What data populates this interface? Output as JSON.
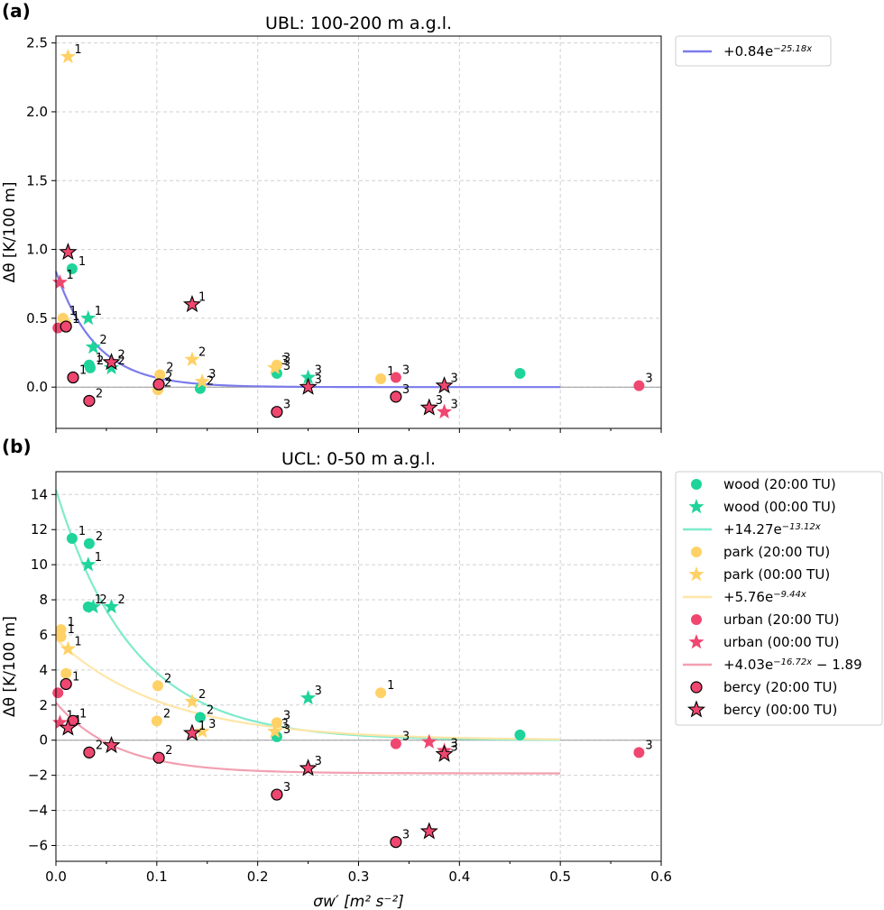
{
  "chart_data": [
    {
      "type": "scatter",
      "panel_label": "(a)",
      "title": "UBL: 100-200 m a.g.l.",
      "xlabel": "",
      "ylabel": "Δθ [K/100 m]",
      "xlim": [
        0,
        0.6
      ],
      "ylim": [
        -0.3,
        2.55
      ],
      "xticks": [],
      "yticks": [
        0.0,
        0.5,
        1.0,
        1.5,
        2.0,
        2.5
      ],
      "ytick_labels": [
        "0.0",
        "0.5",
        "1.0",
        "1.5",
        "2.0",
        "2.5"
      ],
      "grid": true,
      "legend_position": "outside-right",
      "legend": [
        {
          "kind": "line",
          "color": "#7b7bec",
          "label": "+0.84e",
          "exp": "−25.18x"
        }
      ],
      "fits": [
        {
          "a": 0.84,
          "b": 25.18,
          "c": 0,
          "x_range": [
            0,
            0.5
          ],
          "color": "#7b7bec"
        }
      ],
      "series": [
        {
          "name": "wood (20:00 TU)",
          "marker": "circle",
          "color": "#1ed49a",
          "edge": false,
          "points": [
            [
              0.016,
              0.86,
              "1"
            ],
            [
              0.033,
              0.16,
              "1"
            ],
            [
              0.034,
              0.14,
              "2"
            ],
            [
              0.143,
              -0.01,
              "2"
            ],
            [
              0.219,
              0.1,
              "3"
            ],
            [
              0.46,
              0.1,
              ""
            ]
          ]
        },
        {
          "name": "wood (00:00 TU)",
          "marker": "star",
          "color": "#1ed49a",
          "edge": false,
          "points": [
            [
              0.032,
              0.5,
              "1"
            ],
            [
              0.037,
              0.29,
              "2"
            ],
            [
              0.055,
              0.14,
              "2"
            ],
            [
              0.25,
              0.07,
              "3"
            ]
          ]
        },
        {
          "name": "park (20:00 TU)",
          "marker": "circle",
          "color": "#ffd166",
          "edge": false,
          "points": [
            [
              0.007,
              0.5,
              "1"
            ],
            [
              0.01,
              0.46,
              "1"
            ],
            [
              0.101,
              -0.02,
              "2"
            ],
            [
              0.103,
              0.09,
              "2"
            ],
            [
              0.219,
              0.16,
              "3"
            ],
            [
              0.322,
              0.06,
              "1"
            ]
          ]
        },
        {
          "name": "park (00:00 TU)",
          "marker": "star",
          "color": "#ffd166",
          "edge": false,
          "points": [
            [
              0.012,
              2.4,
              "1"
            ],
            [
              0.135,
              0.2,
              "2"
            ],
            [
              0.145,
              0.04,
              "3"
            ],
            [
              0.217,
              0.14,
              "3"
            ]
          ]
        },
        {
          "name": "urban (20:00 TU)",
          "marker": "circle",
          "color": "#ef476f",
          "edge": false,
          "points": [
            [
              0.002,
              0.43,
              ""
            ],
            [
              0.337,
              0.07,
              "3"
            ],
            [
              0.578,
              0.01,
              "3"
            ]
          ]
        },
        {
          "name": "urban (00:00 TU)",
          "marker": "star",
          "color": "#ef476f",
          "edge": false,
          "points": [
            [
              0.004,
              0.76,
              "1"
            ],
            [
              0.385,
              -0.18,
              "3"
            ]
          ]
        },
        {
          "name": "bercy (20:00 TU)",
          "marker": "circle",
          "color": "#ef476f",
          "edge": true,
          "points": [
            [
              0.01,
              0.44,
              "1"
            ],
            [
              0.017,
              0.07,
              "1"
            ],
            [
              0.033,
              -0.1,
              "2"
            ],
            [
              0.102,
              0.02,
              "2"
            ],
            [
              0.219,
              -0.18,
              "3"
            ],
            [
              0.337,
              -0.07,
              "3"
            ]
          ]
        },
        {
          "name": "bercy (00:00 TU)",
          "marker": "star",
          "color": "#ef476f",
          "edge": true,
          "points": [
            [
              0.012,
              0.98,
              ""
            ],
            [
              0.055,
              0.18,
              "2"
            ],
            [
              0.135,
              0.6,
              "1"
            ],
            [
              0.25,
              0.0,
              "3"
            ],
            [
              0.37,
              -0.15,
              "3"
            ],
            [
              0.385,
              0.01,
              "3"
            ]
          ]
        }
      ]
    },
    {
      "type": "scatter",
      "panel_label": "(b)",
      "title": "UCL: 0-50 m a.g.l.",
      "xlabel": "σw′ [m² s⁻²]",
      "ylabel": "Δθ [K/100 m]",
      "xlim": [
        0,
        0.6
      ],
      "ylim": [
        -6.9,
        15.3
      ],
      "xticks": [
        0.0,
        0.1,
        0.2,
        0.3,
        0.4,
        0.5,
        0.6
      ],
      "xtick_labels": [
        "0.0",
        "0.1",
        "0.2",
        "0.3",
        "0.4",
        "0.5",
        "0.6"
      ],
      "yticks": [
        -6,
        -4,
        -2,
        0,
        2,
        4,
        6,
        8,
        10,
        12,
        14
      ],
      "ytick_labels": [
        "−6",
        "−4",
        "−2",
        "0",
        "2",
        "4",
        "6",
        "8",
        "10",
        "12",
        "14"
      ],
      "grid": true,
      "legend_position": "outside-right",
      "legend": [
        {
          "kind": "circle",
          "color": "#1ed49a",
          "edge": false,
          "label": "wood (20:00 TU)"
        },
        {
          "kind": "star",
          "color": "#1ed49a",
          "edge": false,
          "label": "wood (00:00 TU)"
        },
        {
          "kind": "line",
          "color": "#7eebcb",
          "label": "+14.27e",
          "exp": "−13.12x"
        },
        {
          "kind": "circle",
          "color": "#ffd166",
          "edge": false,
          "label": "park (20:00 TU)"
        },
        {
          "kind": "star",
          "color": "#ffd166",
          "edge": false,
          "label": "park (00:00 TU)"
        },
        {
          "kind": "line",
          "color": "#ffe6a8",
          "label": "+5.76e",
          "exp": "−9.44x"
        },
        {
          "kind": "circle",
          "color": "#ef476f",
          "edge": false,
          "label": "urban (20:00 TU)"
        },
        {
          "kind": "star",
          "color": "#ef476f",
          "edge": false,
          "label": "urban (00:00 TU)"
        },
        {
          "kind": "line",
          "color": "#f29fb1",
          "label": "+4.03e",
          "exp": "−16.72x",
          "suffix": " − 1.89"
        },
        {
          "kind": "circle",
          "color": "#ef476f",
          "edge": true,
          "label": "bercy (20:00 TU)"
        },
        {
          "kind": "star",
          "color": "#ef476f",
          "edge": true,
          "label": "bercy (00:00 TU)"
        }
      ],
      "fits": [
        {
          "a": 14.27,
          "b": 13.12,
          "c": 0,
          "x_range": [
            0,
            0.5
          ],
          "color": "#7eebcb"
        },
        {
          "a": 5.76,
          "b": 9.44,
          "c": 0,
          "x_range": [
            0,
            0.5
          ],
          "color": "#ffe6a8"
        },
        {
          "a": 4.03,
          "b": 16.72,
          "c": -1.89,
          "x_range": [
            0,
            0.5
          ],
          "color": "#f29fb1"
        }
      ],
      "series": [
        {
          "name": "wood (20:00 TU)",
          "marker": "circle",
          "color": "#1ed49a",
          "edge": false,
          "points": [
            [
              0.016,
              11.5,
              "1"
            ],
            [
              0.033,
              11.2,
              "2"
            ],
            [
              0.032,
              7.6,
              "1"
            ],
            [
              0.143,
              1.3,
              "2"
            ],
            [
              0.219,
              0.2,
              "3"
            ],
            [
              0.46,
              0.3,
              ""
            ]
          ]
        },
        {
          "name": "wood (00:00 TU)",
          "marker": "star",
          "color": "#1ed49a",
          "edge": false,
          "points": [
            [
              0.032,
              10.0,
              "1"
            ],
            [
              0.037,
              7.6,
              "2"
            ],
            [
              0.055,
              7.6,
              "2"
            ],
            [
              0.25,
              2.4,
              "3"
            ]
          ]
        },
        {
          "name": "park (20:00 TU)",
          "marker": "circle",
          "color": "#ffd166",
          "edge": false,
          "points": [
            [
              0.005,
              6.3,
              "1"
            ],
            [
              0.005,
              5.9,
              "1"
            ],
            [
              0.01,
              3.8,
              ""
            ],
            [
              0.101,
              3.1,
              "2"
            ],
            [
              0.1,
              1.1,
              "2"
            ],
            [
              0.219,
              1.0,
              "3"
            ],
            [
              0.322,
              2.7,
              "1"
            ]
          ]
        },
        {
          "name": "park (00:00 TU)",
          "marker": "star",
          "color": "#ffd166",
          "edge": false,
          "points": [
            [
              0.012,
              5.2,
              "1"
            ],
            [
              0.135,
              2.2,
              "2"
            ],
            [
              0.145,
              0.5,
              "3"
            ],
            [
              0.217,
              0.5,
              "3"
            ]
          ]
        },
        {
          "name": "urban (20:00 TU)",
          "marker": "circle",
          "color": "#ef476f",
          "edge": false,
          "points": [
            [
              0.002,
              2.7,
              ""
            ],
            [
              0.337,
              -0.2,
              "3"
            ],
            [
              0.578,
              -0.7,
              "3"
            ]
          ]
        },
        {
          "name": "urban (00:00 TU)",
          "marker": "star",
          "color": "#ef476f",
          "edge": false,
          "points": [
            [
              0.004,
              1.0,
              "1"
            ],
            [
              0.37,
              -0.1,
              ""
            ],
            [
              0.385,
              -0.6,
              "3"
            ]
          ]
        },
        {
          "name": "bercy (20:00 TU)",
          "marker": "circle",
          "color": "#ef476f",
          "edge": true,
          "points": [
            [
              0.01,
              3.2,
              "1"
            ],
            [
              0.017,
              1.1,
              "1"
            ],
            [
              0.033,
              -0.7,
              "2"
            ],
            [
              0.102,
              -1.0,
              "2"
            ],
            [
              0.219,
              -3.1,
              "3"
            ],
            [
              0.337,
              -5.8,
              "3"
            ]
          ]
        },
        {
          "name": "bercy (00:00 TU)",
          "marker": "star",
          "color": "#ef476f",
          "edge": true,
          "points": [
            [
              0.012,
              0.7,
              "1"
            ],
            [
              0.055,
              -0.3,
              ""
            ],
            [
              0.135,
              0.4,
              "1"
            ],
            [
              0.25,
              -1.6,
              "3"
            ],
            [
              0.37,
              -5.2,
              ""
            ],
            [
              0.385,
              -0.8,
              "3"
            ]
          ]
        }
      ]
    }
  ]
}
